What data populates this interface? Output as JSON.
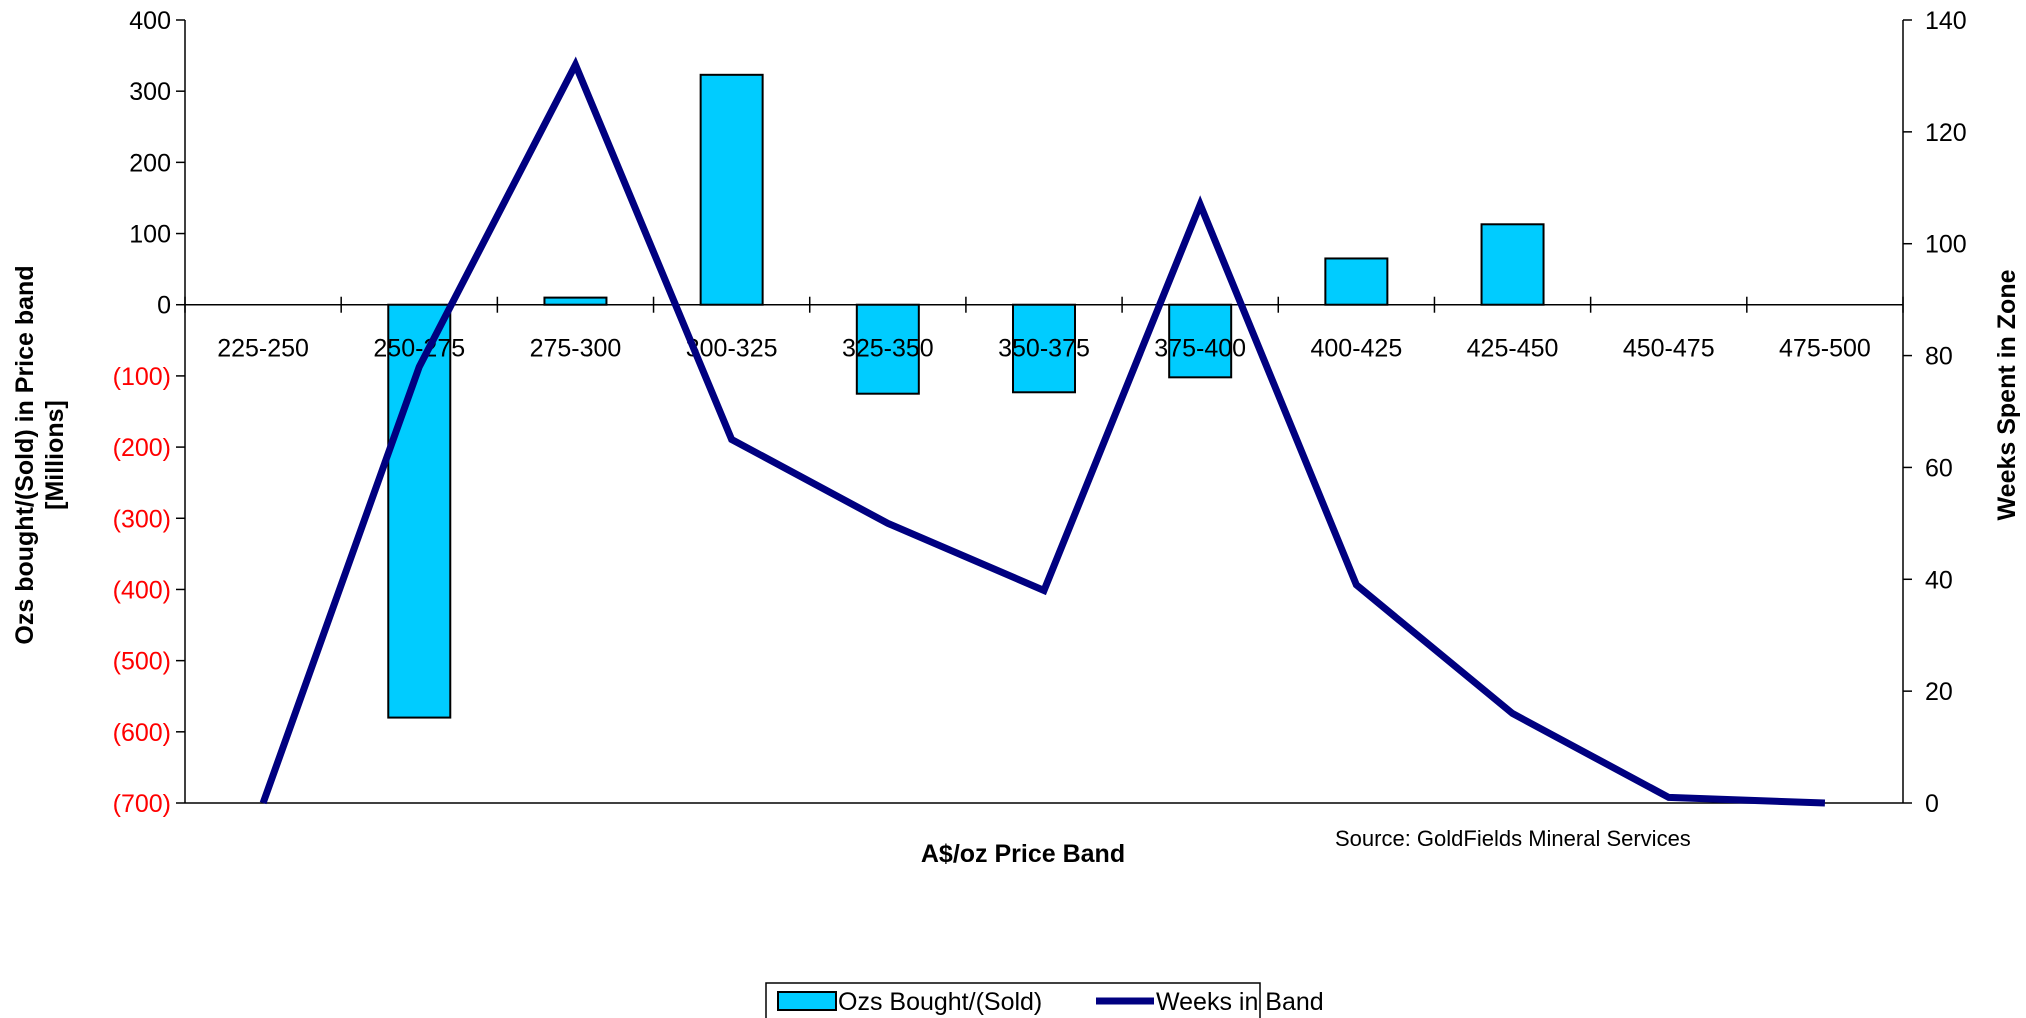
{
  "chart_data": {
    "type": "bar",
    "categories": [
      "225-250",
      "250-275",
      "275-300",
      "300-325",
      "325-350",
      "350-375",
      "375-400",
      "400-425",
      "425-450",
      "450-475",
      "475-500"
    ],
    "series": [
      {
        "name": "Ozs Bought/(Sold)",
        "type": "bar",
        "axis": "left",
        "color": "#00ccff",
        "values": [
          0,
          -580,
          10,
          323,
          -125,
          -123,
          -102,
          65,
          113,
          0,
          0
        ]
      },
      {
        "name": "Weeks in Band",
        "type": "line",
        "axis": "right",
        "color": "#000080",
        "values": [
          0,
          78,
          132,
          65,
          50,
          38,
          107,
          39,
          16,
          1,
          0
        ]
      }
    ],
    "xlabel": "A$/oz Price Band",
    "ylabel": "Ozs bought/(Sold) in Price band [Millions]",
    "ylabel_lines": [
      "Ozs bought/(Sold) in Price band",
      "[Millions]"
    ],
    "y2label": "Weeks Spent in Zone",
    "ylim": [
      -700,
      400
    ],
    "y2lim": [
      0,
      140
    ],
    "yticks": [
      400,
      300,
      200,
      100,
      0,
      -100,
      -200,
      -300,
      -400,
      -500,
      -600,
      -700
    ],
    "ytick_labels": [
      "400",
      "300",
      "200",
      "100",
      "0",
      "(100)",
      "(200)",
      "(300)",
      "(400)",
      "(500)",
      "(600)",
      "(700)"
    ],
    "negative_tick_color": "#ff0000",
    "y2ticks": [
      140,
      120,
      100,
      80,
      60,
      40,
      20,
      0
    ],
    "y2tick_labels": [
      "140",
      "120",
      "100",
      "80",
      "60",
      "40",
      "20",
      "0"
    ],
    "annotation": "Source: GoldFields Mineral Services",
    "legend_position": "bottom",
    "grid": false
  }
}
